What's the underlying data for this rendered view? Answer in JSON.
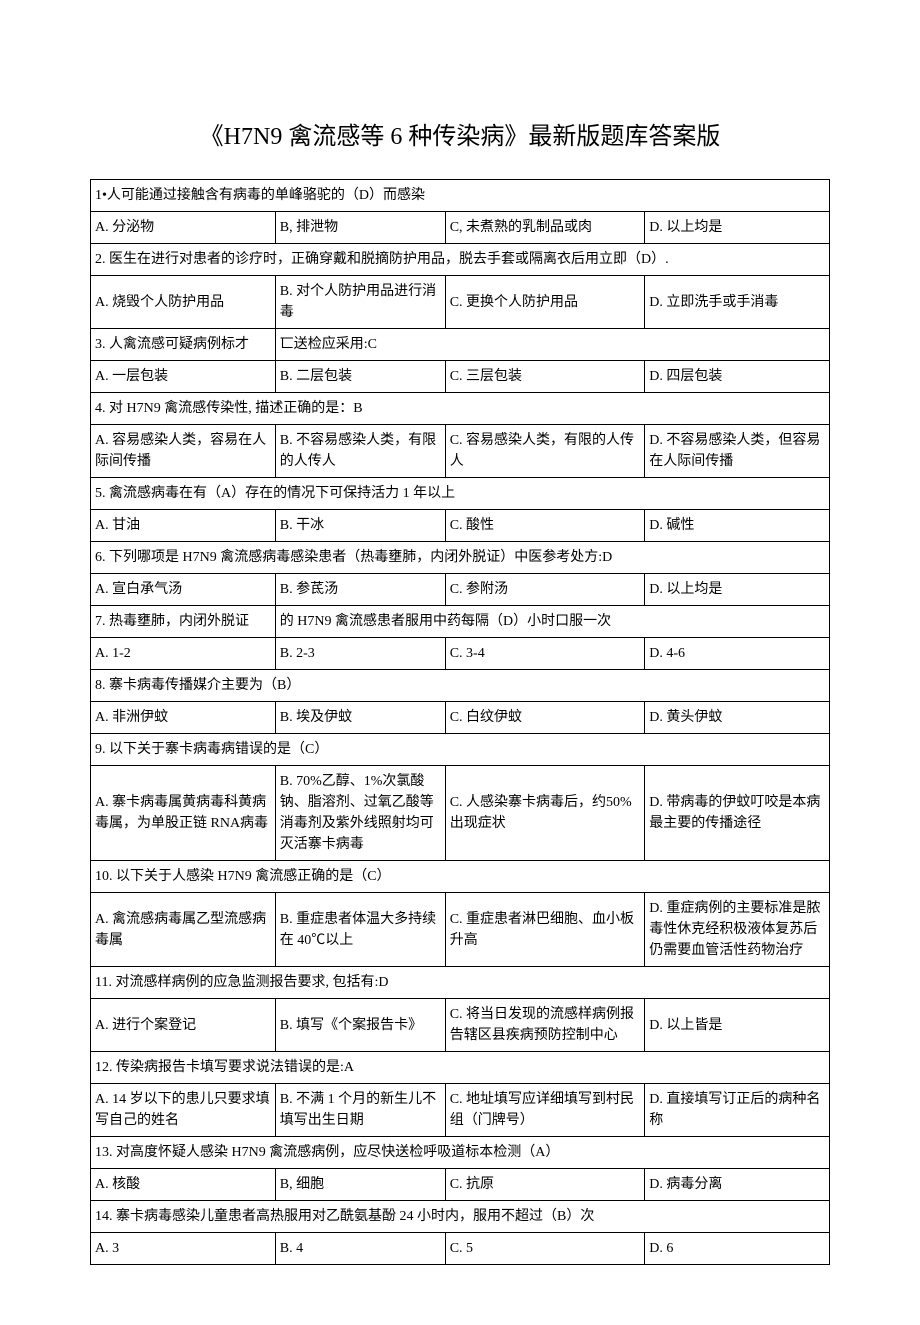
{
  "title": "《H7N9 禽流感等 6 种传染病》最新版题库答案版",
  "rows": [
    {
      "type": "q",
      "text": "1•人可能通过接触含有病毒的单峰骆驼的（D）而感染"
    },
    {
      "type": "opts",
      "cells": [
        "A. 分泌物",
        "B, 排泄物",
        "C, 未煮熟的乳制品或肉",
        "D. 以上均是"
      ]
    },
    {
      "type": "q",
      "text": "2. 医生在进行对患者的诊疗时，正确穿戴和脱摘防护用品，脱去手套或隔离衣后用立即（D）."
    },
    {
      "type": "opts",
      "cells": [
        "A. 烧毁个人防护用品",
        "B. 对个人防护用品进行消毒",
        "C. 更换个人防护用品",
        "D. 立即洗手或手消毒"
      ]
    },
    {
      "type": "q2",
      "cells": [
        "3. 人禽流感可疑病例标才",
        "匸送检应采用:C"
      ]
    },
    {
      "type": "opts",
      "cells": [
        "A. 一层包装",
        "B. 二层包装",
        "C. 三层包装",
        "D. 四层包装"
      ]
    },
    {
      "type": "q",
      "text": "4. 对 H7N9 禽流感传染性, 描述正确的是：B"
    },
    {
      "type": "opts",
      "cells": [
        "A. 容易感染人类，容易在人际间传播",
        "B. 不容易感染人类，有限的人传人",
        "C. 容易感染人类，有限的人传人",
        "D. 不容易感染人类，但容易在人际间传播"
      ]
    },
    {
      "type": "q",
      "text": "5. 禽流感病毒在有（A）存在的情况下可保持活力 1 年以上"
    },
    {
      "type": "opts",
      "cells": [
        "A. 甘油",
        "B. 干冰",
        "C. 酸性",
        "D. 碱性"
      ]
    },
    {
      "type": "q",
      "text": "6. 下列哪项是 H7N9 禽流感病毒感染患者（热毒壅肺，内闭外脱证）中医参考处方:D"
    },
    {
      "type": "opts",
      "cells": [
        "A. 宣白承气汤",
        "B. 参茋汤",
        "C. 参附汤",
        "D. 以上均是"
      ]
    },
    {
      "type": "q2",
      "cells": [
        "7. 热毒壅肺，内闭外脱证",
        "的 H7N9 禽流感患者服用中药每隔（D）小时口服一次"
      ]
    },
    {
      "type": "opts",
      "cells": [
        "A. 1-2",
        "B. 2-3",
        "C. 3-4",
        "D. 4-6"
      ]
    },
    {
      "type": "q",
      "text": "8. 寨卡病毒传播媒介主要为（B）"
    },
    {
      "type": "opts",
      "cells": [
        "A. 非洲伊蚊",
        "B. 埃及伊蚊",
        "C. 白纹伊蚊",
        "D. 黄头伊蚊"
      ]
    },
    {
      "type": "q",
      "text": "9. 以下关于寨卡病毒病错误的是（C）"
    },
    {
      "type": "opts",
      "cells": [
        "A. 寨卡病毒属黄病毒科黄病毒属，为单股正链 RNA病毒",
        "B. 70%乙醇、1%次氯酸钠、脂溶剂、过氧乙酸等消毒剂及紫外线照射均可灭活寨卡病毒",
        "C. 人感染寨卡病毒后，约50%出现症状",
        "D. 带病毒的伊蚊叮咬是本病最主要的传播途径"
      ]
    },
    {
      "type": "q",
      "text": "10. 以下关于人感染 H7N9 禽流感正确的是（C）"
    },
    {
      "type": "opts",
      "cells": [
        "A. 禽流感病毒属乙型流感病毒属",
        "B. 重症患者体温大多持续在 40℃以上",
        "C. 重症患者淋巴细胞、血小板升高",
        "D. 重症病例的主要标准是脓毒性休克经积极液体复苏后仍需要血管活性药物治疗"
      ]
    },
    {
      "type": "q",
      "text": "11. 对流感样病例的应急监测报告要求, 包括有:D"
    },
    {
      "type": "opts",
      "cells": [
        "A. 进行个案登记",
        "B. 填写《个案报告卡》",
        "C. 将当日发现的流感样病例报告辖区县疾病预防控制中心",
        "D. 以上皆是"
      ]
    },
    {
      "type": "q",
      "text": "12. 传染病报告卡填写要求说法错误的是:A"
    },
    {
      "type": "opts",
      "cells": [
        "A. 14 岁以下的患儿只要求填写自己的姓名",
        "B. 不满 1 个月的新生儿不填写出生日期",
        "C. 地址填写应详细填写到村民组（门牌号）",
        "D. 直接填写订正后的病种名称"
      ]
    },
    {
      "type": "q",
      "text": "13. 对高度怀疑人感染 H7N9 禽流感病例，应尽快送检呼吸道标本检测（A）"
    },
    {
      "type": "opts",
      "cells": [
        "A. 核酸",
        "B, 细胞",
        "C. 抗原",
        "D. 病毒分离"
      ]
    },
    {
      "type": "q",
      "text": "14. 寨卡病毒感染儿童患者高热服用对乙酰氨基酚 24 小时内，服用不超过（B）次"
    },
    {
      "type": "opts",
      "cells": [
        "A. 3",
        "B. 4",
        "C. 5",
        "D. 6"
      ]
    }
  ]
}
